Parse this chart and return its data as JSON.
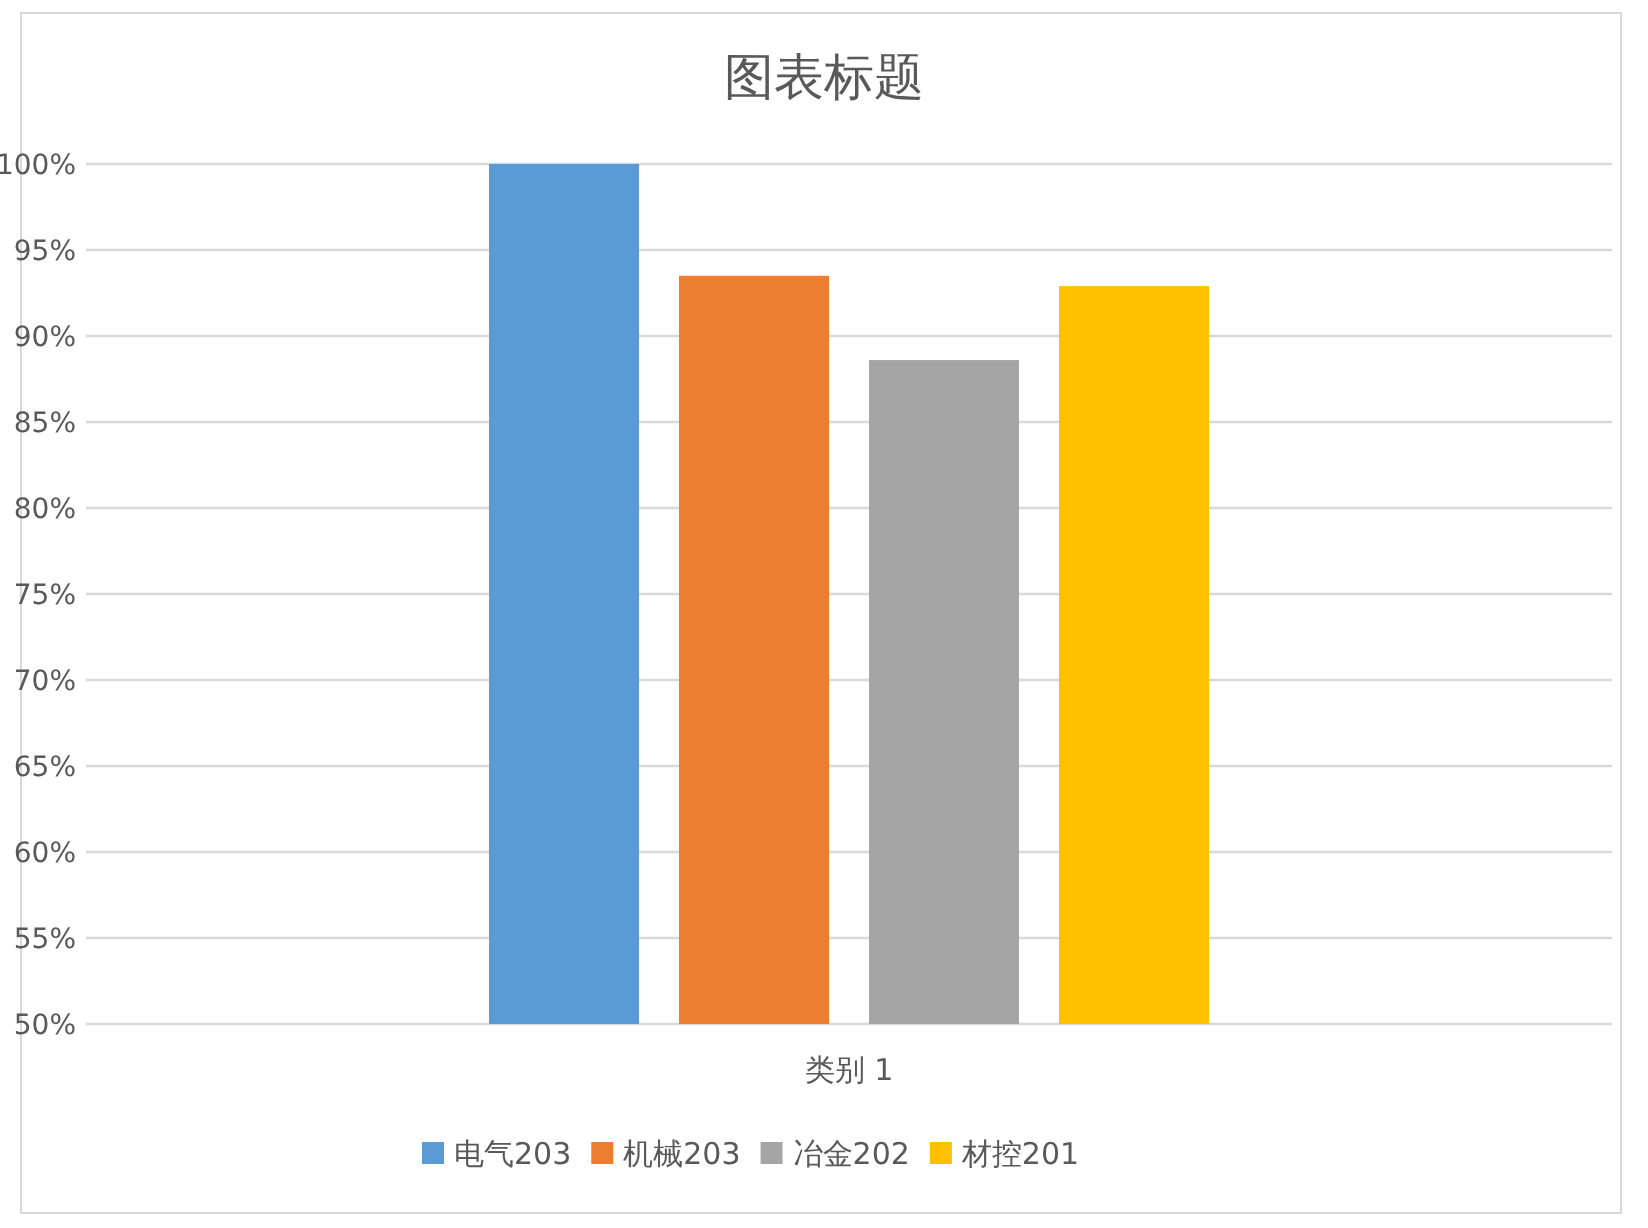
{
  "chart_data": {
    "type": "bar",
    "title": "图表标题",
    "categories": [
      "类别 1"
    ],
    "series": [
      {
        "name": "电气203",
        "color": "#5b9bd5",
        "values": [
          100
        ]
      },
      {
        "name": "机械203",
        "color": "#ed7d31",
        "values": [
          93.5
        ]
      },
      {
        "name": "冶金202",
        "color": "#a5a5a5",
        "values": [
          88.6
        ]
      },
      {
        "name": "材控201",
        "color": "#ffc000",
        "values": [
          92.9
        ]
      }
    ],
    "ylim": [
      50,
      100
    ],
    "yticks": [
      {
        "value": 50,
        "label": "50%"
      },
      {
        "value": 55,
        "label": "55%"
      },
      {
        "value": 60,
        "label": "60%"
      },
      {
        "value": 65,
        "label": "65%"
      },
      {
        "value": 70,
        "label": "70%"
      },
      {
        "value": 75,
        "label": "75%"
      },
      {
        "value": 80,
        "label": "80%"
      },
      {
        "value": 85,
        "label": "85%"
      },
      {
        "value": 90,
        "label": "90%"
      },
      {
        "value": 95,
        "label": "95%"
      },
      {
        "value": 100,
        "label": "100%"
      }
    ],
    "grid": "y",
    "legend": "bottom"
  }
}
